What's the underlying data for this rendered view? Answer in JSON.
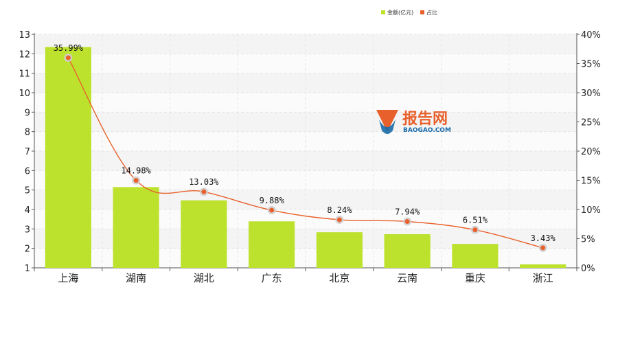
{
  "chart_data": {
    "type": "bar",
    "categories": [
      "上海",
      "湖南",
      "湖北",
      "广东",
      "北京",
      "云南",
      "重庆",
      "浙江"
    ],
    "series": [
      {
        "name": "金额(亿元)",
        "type": "bar",
        "axis": "left",
        "color": "#bde22e",
        "values": [
          12.35,
          5.15,
          4.47,
          3.39,
          2.83,
          2.73,
          2.23,
          1.18
        ]
      },
      {
        "name": "占比",
        "type": "line",
        "axis": "right",
        "color": "#e8612c",
        "values": [
          35.99,
          14.98,
          13.03,
          9.88,
          8.24,
          7.94,
          6.51,
          3.43
        ],
        "labels": [
          "35.99%",
          "14.98%",
          "13.03%",
          "9.88%",
          "8.24%",
          "7.94%",
          "6.51%",
          "3.43%"
        ]
      }
    ],
    "left_axis": {
      "min": 1,
      "max": 13,
      "ticks": [
        1,
        2,
        3,
        4,
        5,
        6,
        7,
        8,
        9,
        10,
        11,
        12,
        13
      ]
    },
    "right_axis": {
      "min": 0,
      "max": 40,
      "ticks": [
        0,
        5,
        10,
        15,
        20,
        25,
        30,
        35,
        40
      ],
      "tick_labels": [
        "0%",
        "5%",
        "10%",
        "15%",
        "20%",
        "25%",
        "30%",
        "35%",
        "40%"
      ]
    },
    "grid": true,
    "legend_position": "top-right"
  },
  "watermark": {
    "title": "报告网",
    "subtitle": "BAOGAO.COM",
    "logo_colors": [
      "#e8612c",
      "#1a6aa8"
    ]
  }
}
